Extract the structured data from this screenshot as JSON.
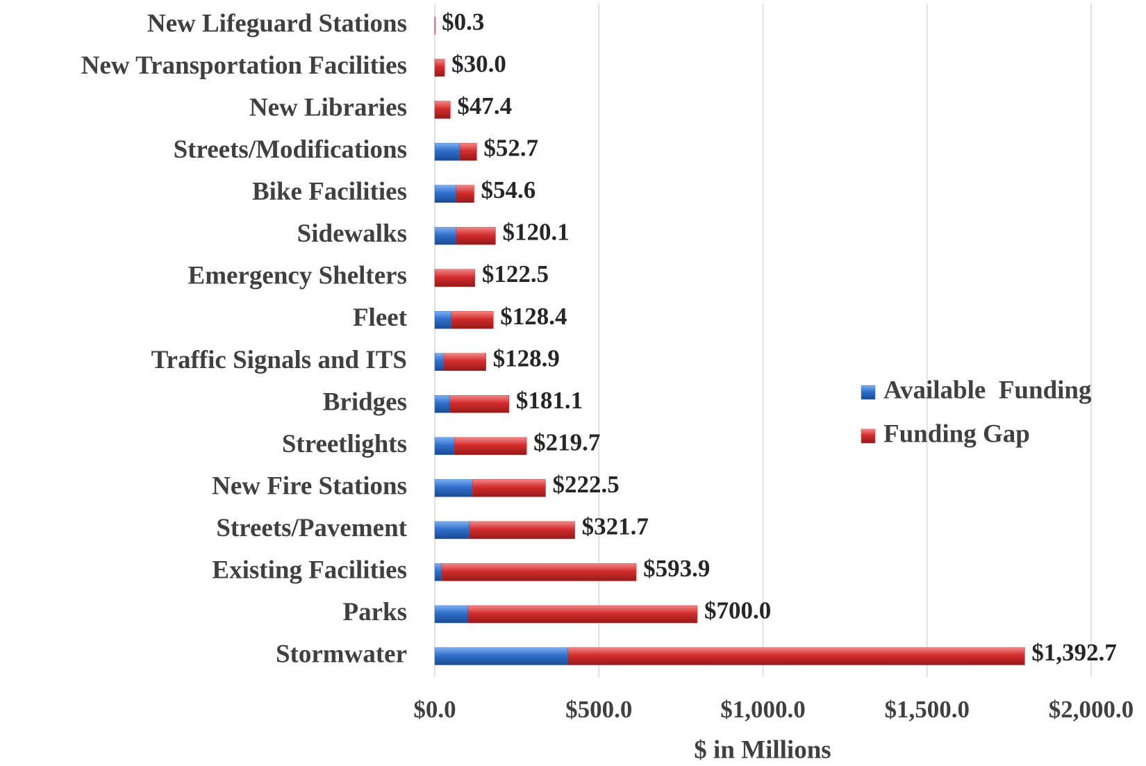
{
  "chart_data": {
    "type": "bar",
    "orientation": "horizontal",
    "stacked": true,
    "x_label": "$ in Millions",
    "categories": [
      "New Lifeguard Stations",
      "New Transportation Facilities",
      "New Libraries",
      "Streets/Modifications",
      "Bike Facilities",
      "Sidewalks",
      "Emergency Shelters",
      "Fleet",
      "Traffic Signals and ITS",
      "Bridges",
      "Streetlights",
      "New Fire Stations",
      "Streets/Pavement",
      "Existing Facilities",
      "Parks",
      "Stormwater"
    ],
    "series": [
      {
        "name": "Available  Funding",
        "color": "#2f6fcc",
        "values": [
          0,
          0,
          0,
          75,
          65,
          65,
          0,
          50,
          27,
          45,
          60,
          115,
          105,
          20,
          100,
          405
        ]
      },
      {
        "name": "Funding Gap",
        "color": "#d42c2c",
        "values": [
          0.3,
          30.0,
          47.4,
          52.7,
          54.6,
          120.1,
          122.5,
          128.4,
          128.9,
          181.1,
          219.7,
          222.5,
          321.7,
          593.9,
          700.0,
          1392.7
        ],
        "value_labels": [
          "$0.3",
          "$30.0",
          "$47.4",
          "$52.7",
          "$54.6",
          "$120.1",
          "$122.5",
          "$128.4",
          "$128.9",
          "$181.1",
          "$219.7",
          "$222.5",
          "$321.7",
          "$593.9",
          "$700.0",
          "$1,392.7"
        ]
      }
    ],
    "xlim": [
      0,
      2000
    ],
    "xticks": [
      {
        "value": 0,
        "label": "$0.0"
      },
      {
        "value": 500,
        "label": "$500.0"
      },
      {
        "value": 1000,
        "label": "$1,000.0"
      },
      {
        "value": 1500,
        "label": "$1,500.0"
      },
      {
        "value": 2000,
        "label": "$2,000.0"
      }
    ],
    "grid": true,
    "legend": "right"
  }
}
